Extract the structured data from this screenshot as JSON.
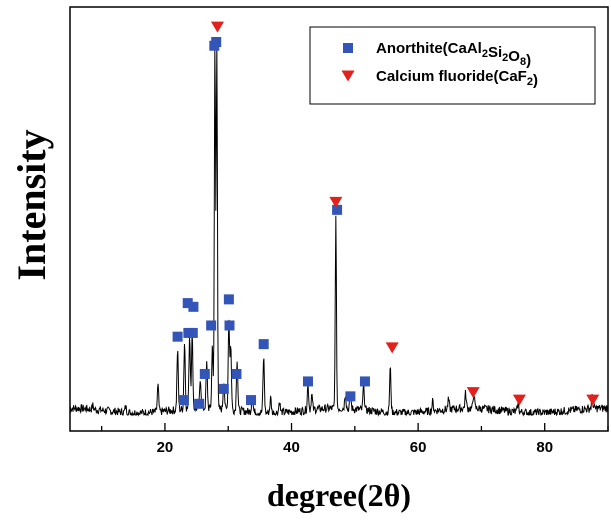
{
  "chart_data": {
    "type": "line",
    "xlabel": "degree(2θ)",
    "ylabel": "Intensity",
    "xlim": [
      5,
      90
    ],
    "ylim": [
      0,
      1
    ],
    "x_ticks": [
      20,
      40,
      60,
      80
    ],
    "x_tick_labels": [
      "20",
      "40",
      "60",
      "80"
    ],
    "grid": false,
    "legend_position": "top-right",
    "legend": [
      {
        "name": "Anorthite(CaAl₂Si₂O₈)",
        "base": "Anorthite(CaAl",
        "parts": [
          {
            "sub": "2"
          },
          {
            "text": "Si"
          },
          {
            "sub": "2"
          },
          {
            "text": "O"
          },
          {
            "sub": "8"
          },
          {
            "text": ")"
          }
        ],
        "marker": "square",
        "color": "#3355b8"
      },
      {
        "name": "Calcium fluoride(CaF₂)",
        "base": "Calcium fluoride(CaF",
        "parts": [
          {
            "sub": "2"
          },
          {
            "text": ")"
          }
        ],
        "marker": "triangle-down",
        "color": "#e3201b"
      }
    ],
    "line_color": "#000000",
    "peaks": [
      [
        8.6,
        0.01
      ],
      [
        13.8,
        0.015
      ],
      [
        18.9,
        0.07
      ],
      [
        22.0,
        0.16
      ],
      [
        23.1,
        0.18
      ],
      [
        23.9,
        0.2
      ],
      [
        24.3,
        0.2
      ],
      [
        25.6,
        0.08
      ],
      [
        26.6,
        0.12
      ],
      [
        27.5,
        0.17
      ],
      [
        27.9,
        0.99
      ],
      [
        28.2,
        0.99
      ],
      [
        29.3,
        0.08
      ],
      [
        30.1,
        0.24
      ],
      [
        30.4,
        0.17
      ],
      [
        31.4,
        0.14
      ],
      [
        33.8,
        0.05
      ],
      [
        35.6,
        0.15
      ],
      [
        36.7,
        0.04
      ],
      [
        38.1,
        0.03
      ],
      [
        42.6,
        0.07
      ],
      [
        43.2,
        0.04
      ],
      [
        47.0,
        0.51
      ],
      [
        48.5,
        0.04
      ],
      [
        49.3,
        0.04
      ],
      [
        51.4,
        0.07
      ],
      [
        55.6,
        0.12
      ],
      [
        62.3,
        0.025
      ],
      [
        64.8,
        0.025
      ],
      [
        67.5,
        0.04
      ],
      [
        68.8,
        0.04
      ],
      [
        75.8,
        0.025
      ],
      [
        87.5,
        0.03
      ]
    ],
    "series": [
      {
        "name": "Anorthite(CaAl₂Si₂O₈)",
        "marker": "square",
        "color": "#3355b8",
        "points": [
          [
            22.0,
            0.21
          ],
          [
            23.0,
            0.04
          ],
          [
            23.6,
            0.3
          ],
          [
            23.7,
            0.22
          ],
          [
            24.4,
            0.22
          ],
          [
            24.5,
            0.29
          ],
          [
            25.4,
            0.03
          ],
          [
            26.3,
            0.11
          ],
          [
            27.3,
            0.24
          ],
          [
            27.8,
            0.99
          ],
          [
            28.1,
            1.0
          ],
          [
            29.3,
            0.07
          ],
          [
            30.1,
            0.31
          ],
          [
            30.2,
            0.24
          ],
          [
            31.3,
            0.11
          ],
          [
            33.6,
            0.04
          ],
          [
            35.6,
            0.19
          ],
          [
            42.6,
            0.09
          ],
          [
            47.2,
            0.55
          ],
          [
            49.3,
            0.05
          ],
          [
            51.6,
            0.09
          ]
        ]
      },
      {
        "name": "Calcium fluoride(CaF₂)",
        "marker": "triangle-down",
        "color": "#e3201b",
        "points": [
          [
            28.3,
            1.04
          ],
          [
            47.0,
            0.57
          ],
          [
            55.9,
            0.18
          ],
          [
            68.7,
            0.06
          ],
          [
            76.0,
            0.04
          ],
          [
            87.6,
            0.04
          ]
        ]
      }
    ]
  }
}
